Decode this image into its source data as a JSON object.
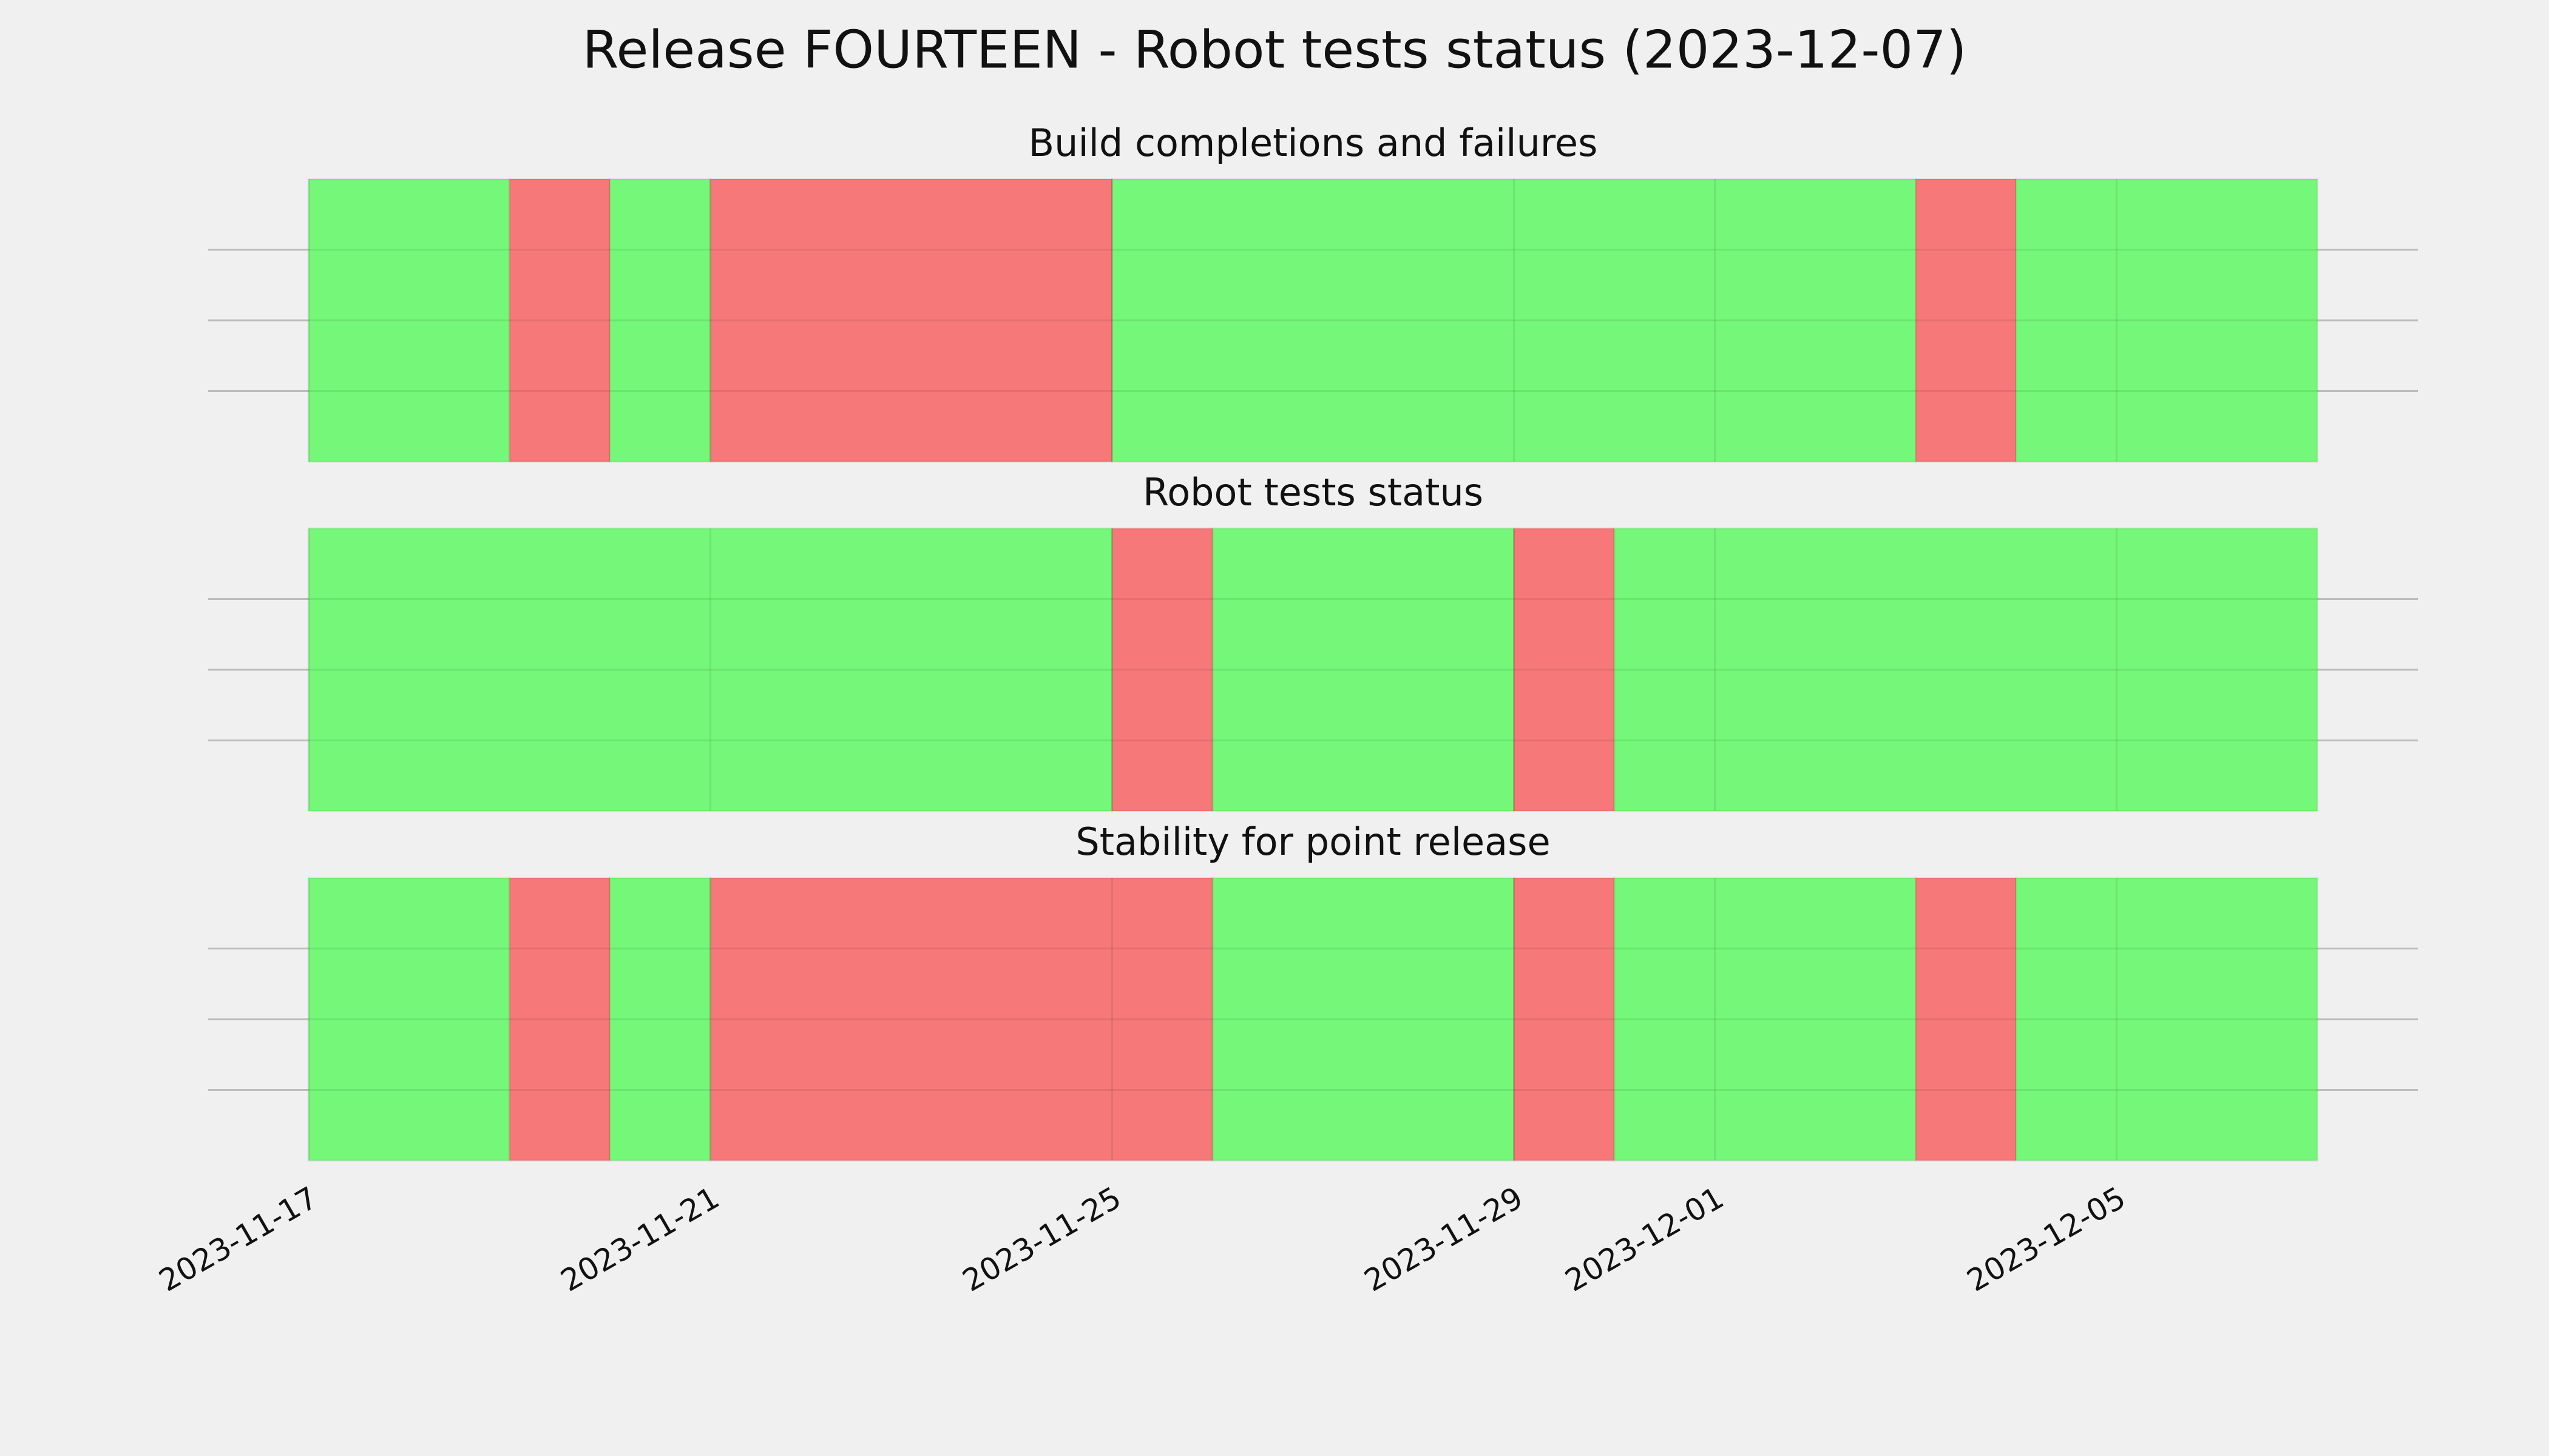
{
  "chart_data": {
    "type": "timeline",
    "title": "Release FOURTEEN - Robot tests status (2023-12-07)",
    "xlim": [
      "2023-11-16",
      "2023-12-08"
    ],
    "xticks": [
      "2023-11-17",
      "2023-11-21",
      "2023-11-25",
      "2023-11-29",
      "2023-12-01",
      "2023-12-05"
    ],
    "ylim": [
      0,
      1
    ],
    "yticks": [
      0.25,
      0.5,
      0.75
    ],
    "grid": true,
    "panels": [
      {
        "title": "Build completions and failures",
        "segments": [
          {
            "start": "2023-11-17",
            "end": "2023-11-19",
            "color": "#75f779"
          },
          {
            "start": "2023-11-19",
            "end": "2023-11-20",
            "color": "#f77878"
          },
          {
            "start": "2023-11-20",
            "end": "2023-11-21",
            "color": "#75f779"
          },
          {
            "start": "2023-11-21",
            "end": "2023-11-25",
            "color": "#f77878"
          },
          {
            "start": "2023-11-25",
            "end": "2023-12-03",
            "color": "#75f779"
          },
          {
            "start": "2023-12-03",
            "end": "2023-12-04",
            "color": "#f77878"
          },
          {
            "start": "2023-12-04",
            "end": "2023-12-07",
            "color": "#75f779"
          }
        ]
      },
      {
        "title": "Robot tests status",
        "segments": [
          {
            "start": "2023-11-17",
            "end": "2023-11-25",
            "color": "#75f779"
          },
          {
            "start": "2023-11-25",
            "end": "2023-11-26",
            "color": "#f77878"
          },
          {
            "start": "2023-11-26",
            "end": "2023-11-29",
            "color": "#75f779"
          },
          {
            "start": "2023-11-29",
            "end": "2023-11-30",
            "color": "#f77878"
          },
          {
            "start": "2023-11-30",
            "end": "2023-12-07",
            "color": "#75f779"
          }
        ]
      },
      {
        "title": "Stability for point release",
        "segments": [
          {
            "start": "2023-11-17",
            "end": "2023-11-19",
            "color": "#75f779"
          },
          {
            "start": "2023-11-19",
            "end": "2023-11-20",
            "color": "#f77878"
          },
          {
            "start": "2023-11-20",
            "end": "2023-11-21",
            "color": "#75f779"
          },
          {
            "start": "2023-11-21",
            "end": "2023-11-26",
            "color": "#f77878"
          },
          {
            "start": "2023-11-26",
            "end": "2023-11-29",
            "color": "#75f779"
          },
          {
            "start": "2023-11-29",
            "end": "2023-11-30",
            "color": "#f77878"
          },
          {
            "start": "2023-11-30",
            "end": "2023-12-03",
            "color": "#75f779"
          },
          {
            "start": "2023-12-03",
            "end": "2023-12-04",
            "color": "#f77878"
          },
          {
            "start": "2023-12-04",
            "end": "2023-12-07",
            "color": "#75f779"
          }
        ]
      }
    ]
  }
}
